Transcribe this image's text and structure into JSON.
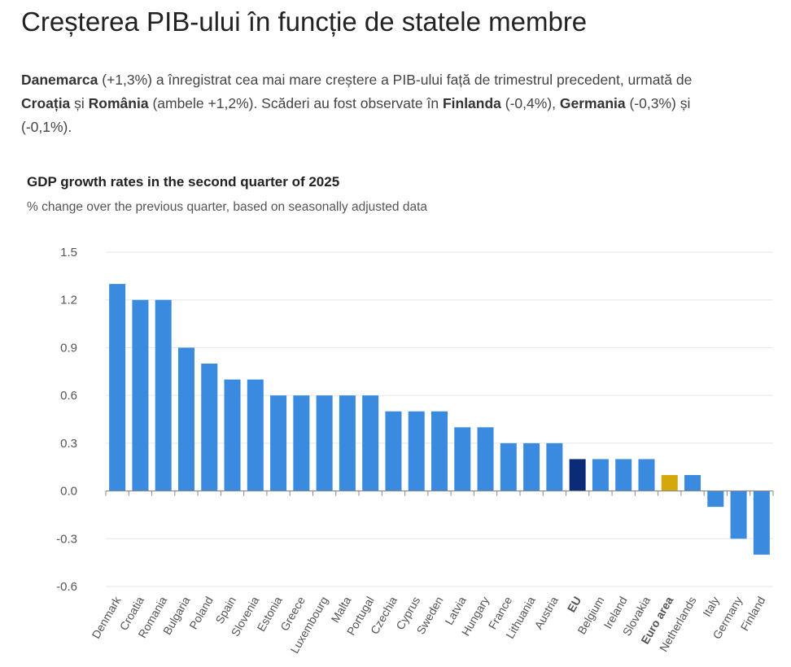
{
  "page_title": "Creșterea PIB-ului în funcție de statele membre",
  "paragraph": [
    [
      {
        "t": "Danemarca",
        "b": true
      },
      {
        "t": " (+1,3%) a înregistrat cea mai mare creștere a PIB-ului față de trimestrul precedent, urmată de"
      }
    ],
    [
      {
        "t": "Croația",
        "b": true
      },
      {
        "t": " și "
      },
      {
        "t": "România",
        "b": true
      },
      {
        "t": " (ambele +1,2%). Scăderi au fost observate în "
      },
      {
        "t": "Finlanda",
        "b": true
      },
      {
        "t": " (-0,4%), "
      },
      {
        "t": "Germania",
        "b": true
      },
      {
        "t": " (-0,3%) și"
      }
    ],
    [
      {
        "t": "(-0,1%)."
      }
    ]
  ],
  "chart_data": {
    "type": "bar",
    "title": "GDP growth rates in the second quarter of 2025",
    "subtitle": "% change over the previous quarter, based on seasonally adjusted data",
    "xlabel": "",
    "ylabel": "",
    "ylim": [
      -0.6,
      1.5
    ],
    "yticks": [
      "1.5",
      "1.2",
      "0.9",
      "0.6",
      "0.3",
      "0.0",
      "-0.3",
      "-0.6"
    ],
    "grid": true,
    "categories": [
      "Denmark",
      "Croatia",
      "Romania",
      "Bulgaria",
      "Poland",
      "Spain",
      "Slovenia",
      "Estonia",
      "Greece",
      "Luxembourg",
      "Malta",
      "Portugal",
      "Czechia",
      "Cyprus",
      "Sweden",
      "Latvia",
      "Hungary",
      "France",
      "Lithuania",
      "Austria",
      "EU",
      "Belgium",
      "Ireland",
      "Slovakia",
      "Euro area",
      "Netherlands",
      "Italy",
      "Germany",
      "Finland"
    ],
    "values": [
      1.3,
      1.2,
      1.2,
      0.9,
      0.8,
      0.7,
      0.7,
      0.6,
      0.6,
      0.6,
      0.6,
      0.6,
      0.5,
      0.5,
      0.5,
      0.4,
      0.4,
      0.3,
      0.3,
      0.3,
      0.2,
      0.2,
      0.2,
      0.2,
      0.1,
      0.1,
      -0.1,
      -0.3,
      -0.4
    ],
    "highlight": {
      "EU": "#0b2a78",
      "Euro area": "#d4a80a"
    },
    "bar_color": "#3a8ae0"
  }
}
